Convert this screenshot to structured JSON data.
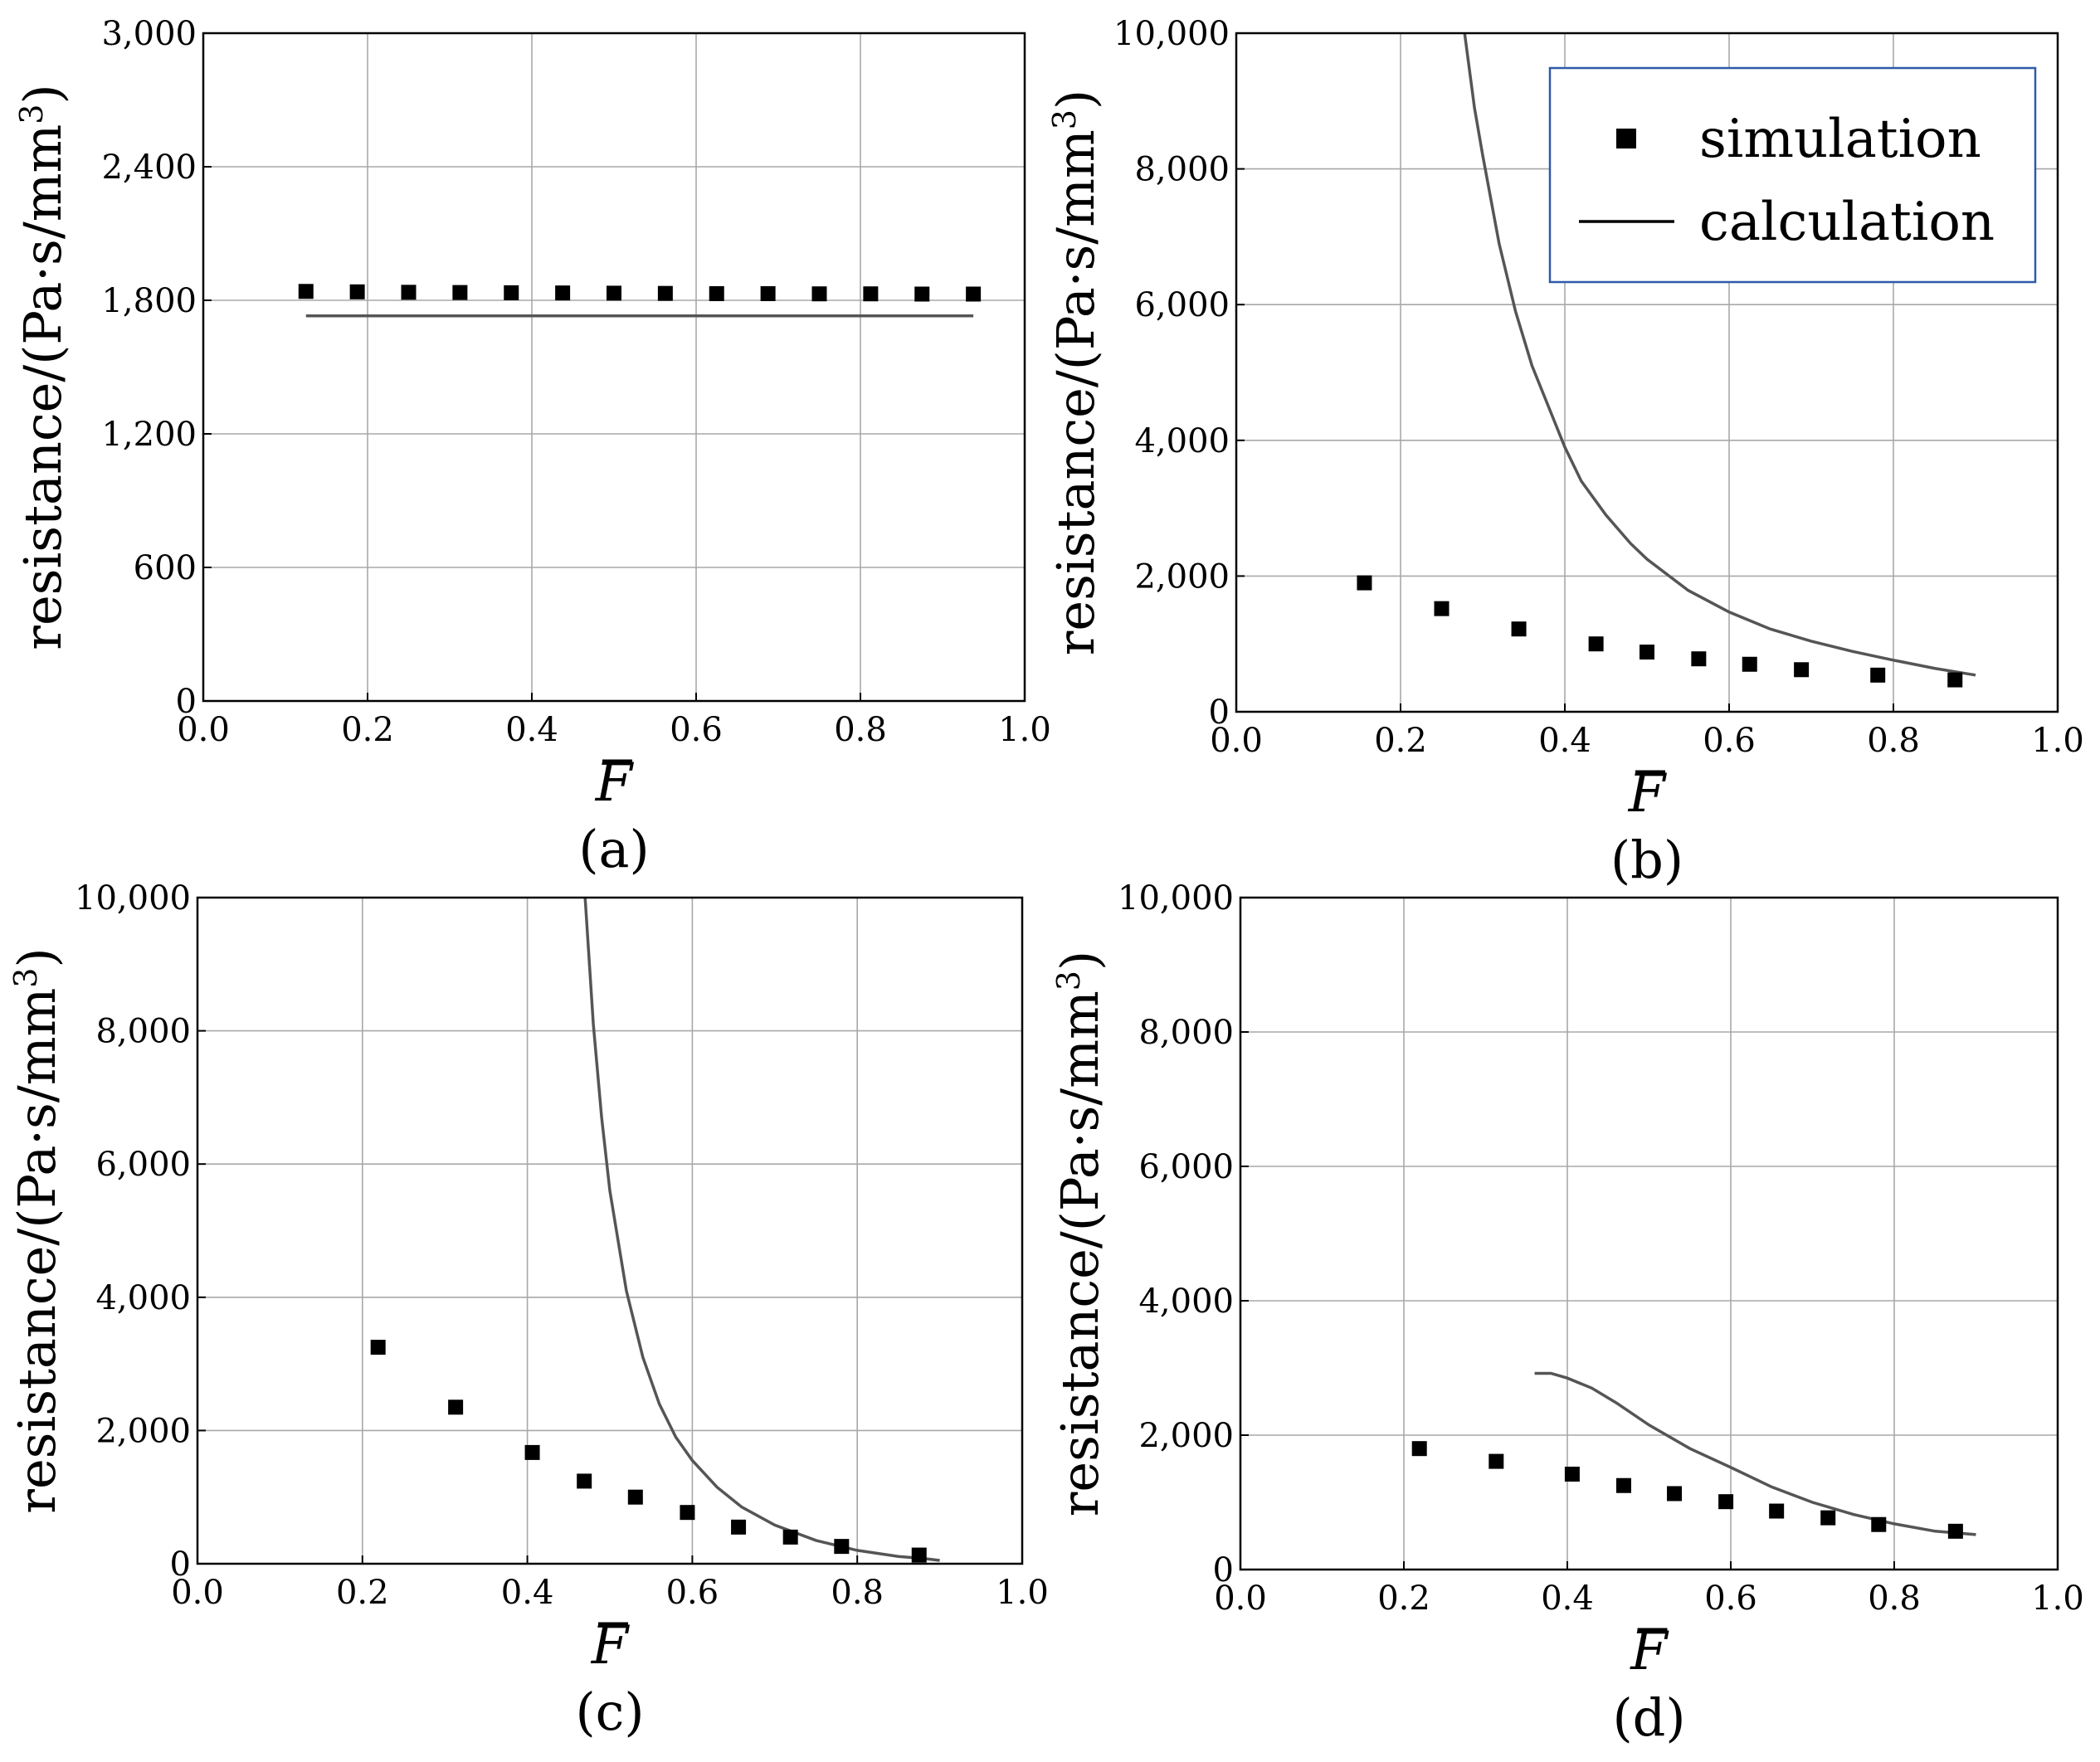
{
  "chart_data": [
    {
      "type": "scatter",
      "panel_label": "(a)",
      "xlabel": "F",
      "xlabel_bar": true,
      "ylabel": "resistance/(Pa·s/mm",
      "ylabel_sup": "3",
      "ylabel_close": ")",
      "xlim": [
        0.0,
        1.0
      ],
      "ylim": [
        0,
        3000
      ],
      "xticks": [
        0.0,
        0.2,
        0.4,
        0.6,
        0.8,
        1.0
      ],
      "xtick_labels": [
        "0.0",
        "0.2",
        "0.4",
        "0.6",
        "0.8",
        "1.0"
      ],
      "yticks": [
        0,
        600,
        1200,
        1800,
        2400,
        3000
      ],
      "ytick_labels": [
        "0",
        "600",
        "1,200",
        "1,800",
        "2,400",
        "3,000"
      ],
      "grid": true,
      "series": [
        {
          "name": "simulation",
          "kind": "markers",
          "x": [
            0.125,
            0.1875,
            0.25,
            0.3125,
            0.375,
            0.4375,
            0.5,
            0.5625,
            0.625,
            0.6875,
            0.75,
            0.8125,
            0.875,
            0.9375
          ],
          "y": [
            1840,
            1838,
            1836,
            1835,
            1834,
            1833,
            1832,
            1831,
            1830,
            1830,
            1829,
            1829,
            1828,
            1828
          ]
        },
        {
          "name": "calculation",
          "kind": "line",
          "x": [
            0.125,
            0.9375
          ],
          "y": [
            1730,
            1730
          ]
        }
      ]
    },
    {
      "type": "scatter",
      "panel_label": "(b)",
      "xlabel": "F",
      "xlabel_bar": true,
      "ylabel": "resistance/(Pa·s/mm",
      "ylabel_sup": "3",
      "ylabel_close": ")",
      "xlim": [
        0.0,
        1.0
      ],
      "ylim": [
        0,
        10000
      ],
      "xticks": [
        0.0,
        0.2,
        0.4,
        0.6,
        0.8,
        1.0
      ],
      "xtick_labels": [
        "0.0",
        "0.2",
        "0.4",
        "0.6",
        "0.8",
        "1.0"
      ],
      "yticks": [
        0,
        2000,
        4000,
        6000,
        8000,
        10000
      ],
      "ytick_labels": [
        "0",
        "2,000",
        "4,000",
        "6,000",
        "8,000",
        "10,000"
      ],
      "grid": true,
      "legend": {
        "placement": "top-right",
        "entries": [
          {
            "label": "simulation",
            "kind": "markers"
          },
          {
            "label": "calculation",
            "kind": "line"
          }
        ]
      },
      "series": [
        {
          "name": "simulation",
          "kind": "markers",
          "x": [
            0.156,
            0.25,
            0.344,
            0.438,
            0.5,
            0.563,
            0.625,
            0.688,
            0.781,
            0.875
          ],
          "y": [
            1900,
            1520,
            1220,
            1000,
            880,
            780,
            700,
            620,
            540,
            470
          ]
        },
        {
          "name": "calculation",
          "kind": "line",
          "x": [
            0.278,
            0.29,
            0.3,
            0.32,
            0.34,
            0.36,
            0.38,
            0.4,
            0.42,
            0.45,
            0.48,
            0.5,
            0.55,
            0.6,
            0.65,
            0.7,
            0.75,
            0.8,
            0.85,
            0.9
          ],
          "y": [
            10000,
            8900,
            8200,
            6900,
            5900,
            5100,
            4500,
            3900,
            3400,
            2900,
            2480,
            2250,
            1790,
            1470,
            1220,
            1040,
            890,
            760,
            640,
            540
          ]
        }
      ]
    },
    {
      "type": "scatter",
      "panel_label": "(c)",
      "xlabel": "F",
      "xlabel_bar": true,
      "ylabel": "resistance/(Pa·s/mm",
      "ylabel_sup": "3",
      "ylabel_close": ")",
      "xlim": [
        0.0,
        1.0
      ],
      "ylim": [
        0,
        10000
      ],
      "xticks": [
        0.0,
        0.2,
        0.4,
        0.6,
        0.8,
        1.0
      ],
      "xtick_labels": [
        "0.0",
        "0.2",
        "0.4",
        "0.6",
        "0.8",
        "1.0"
      ],
      "yticks": [
        0,
        2000,
        4000,
        6000,
        8000,
        10000
      ],
      "ytick_labels": [
        "0",
        "2,000",
        "4,000",
        "6,000",
        "8,000",
        "10,000"
      ],
      "grid": true,
      "series": [
        {
          "name": "simulation",
          "kind": "markers",
          "x": [
            0.219,
            0.313,
            0.406,
            0.469,
            0.531,
            0.594,
            0.656,
            0.719,
            0.781,
            0.875
          ],
          "y": [
            3250,
            2350,
            1670,
            1240,
            1000,
            770,
            550,
            400,
            260,
            130
          ]
        },
        {
          "name": "calculation",
          "kind": "line",
          "x": [
            0.47,
            0.48,
            0.49,
            0.5,
            0.52,
            0.54,
            0.56,
            0.58,
            0.6,
            0.63,
            0.66,
            0.7,
            0.75,
            0.8,
            0.85,
            0.88,
            0.9
          ],
          "y": [
            10000,
            8100,
            6700,
            5600,
            4100,
            3100,
            2400,
            1900,
            1550,
            1150,
            850,
            580,
            350,
            200,
            110,
            80,
            50
          ]
        }
      ]
    },
    {
      "type": "scatter",
      "panel_label": "(d)",
      "xlabel": "F",
      "xlabel_bar": true,
      "ylabel": "resistance/(Pa·s/mm",
      "ylabel_sup": "3",
      "ylabel_close": ")",
      "xlim": [
        0.0,
        1.0
      ],
      "ylim": [
        0,
        10000
      ],
      "xticks": [
        0.0,
        0.2,
        0.4,
        0.6,
        0.8,
        1.0
      ],
      "xtick_labels": [
        "0.0",
        "0.2",
        "0.4",
        "0.6",
        "0.8",
        "1.0"
      ],
      "yticks": [
        0,
        2000,
        4000,
        6000,
        8000,
        10000
      ],
      "ytick_labels": [
        "0",
        "2,000",
        "4,000",
        "6,000",
        "8,000",
        "10,000"
      ],
      "grid": true,
      "series": [
        {
          "name": "simulation",
          "kind": "markers",
          "x": [
            0.219,
            0.313,
            0.406,
            0.469,
            0.531,
            0.594,
            0.656,
            0.719,
            0.781,
            0.875
          ],
          "y": [
            1800,
            1610,
            1420,
            1250,
            1130,
            1010,
            870,
            770,
            670,
            570
          ]
        },
        {
          "name": "calculation",
          "kind": "line",
          "x": [
            0.36,
            0.38,
            0.4,
            0.43,
            0.46,
            0.5,
            0.55,
            0.6,
            0.65,
            0.7,
            0.75,
            0.8,
            0.85,
            0.9
          ],
          "y": [
            2920,
            2920,
            2850,
            2700,
            2480,
            2150,
            1800,
            1520,
            1230,
            1000,
            820,
            680,
            570,
            520
          ]
        }
      ]
    }
  ]
}
